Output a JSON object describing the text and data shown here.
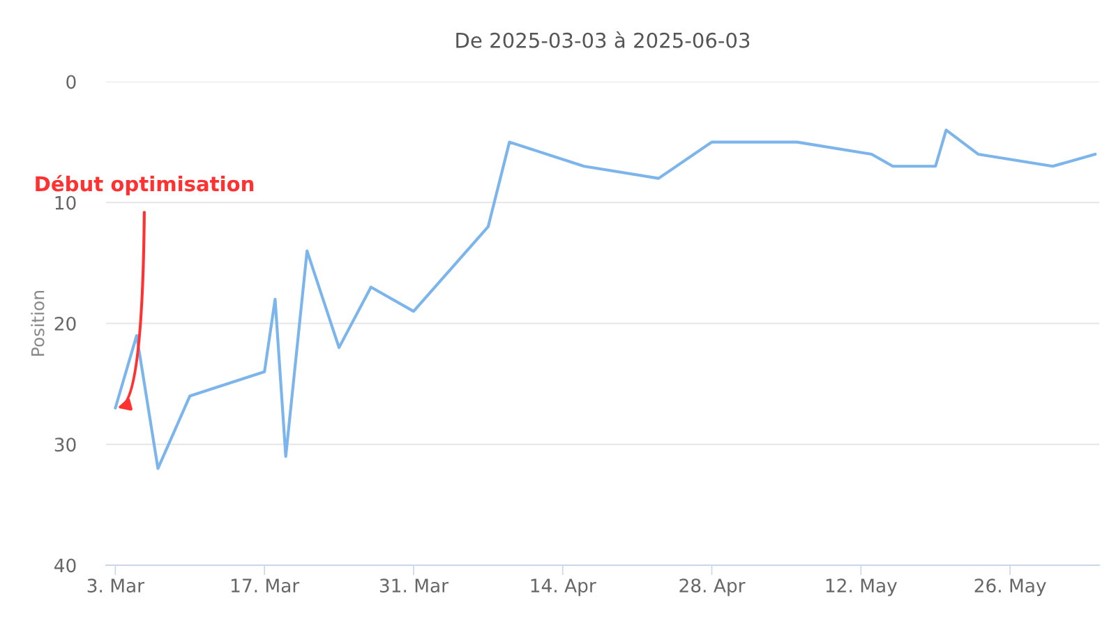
{
  "chart_data": {
    "type": "line",
    "title": "De 2025-03-03 à 2025-06-03",
    "ylabel": "Position",
    "x": [
      "2025-03-03",
      "2025-03-05",
      "2025-03-07",
      "2025-03-10",
      "2025-03-17",
      "2025-03-18",
      "2025-03-19",
      "2025-03-21",
      "2025-03-24",
      "2025-03-27",
      "2025-03-31",
      "2025-04-07",
      "2025-04-09",
      "2025-04-16",
      "2025-04-23",
      "2025-04-28",
      "2025-05-06",
      "2025-05-13",
      "2025-05-15",
      "2025-05-19",
      "2025-05-20",
      "2025-05-23",
      "2025-05-30",
      "2025-06-03"
    ],
    "series": [
      {
        "color": "#7cb5ec",
        "values": [
          27,
          21,
          32,
          26,
          24,
          18,
          31,
          14,
          22,
          17,
          19,
          12,
          5,
          7,
          8,
          5,
          5,
          6,
          7,
          7,
          4,
          6,
          7,
          6
        ]
      }
    ],
    "xlim": [
      "2025-03-02T03:00",
      "2025-06-03T09:00"
    ],
    "xticks": [
      {
        "value": "2025-03-03",
        "label": "3. Mar"
      },
      {
        "value": "2025-03-17",
        "label": "17. Mar"
      },
      {
        "value": "2025-03-31",
        "label": "31. Mar"
      },
      {
        "value": "2025-04-14",
        "label": "14. Apr"
      },
      {
        "value": "2025-04-28",
        "label": "28. Apr"
      },
      {
        "value": "2025-05-12",
        "label": "12. May"
      },
      {
        "value": "2025-05-26",
        "label": "26. May"
      }
    ],
    "ylim": [
      40,
      0
    ],
    "yticks": [
      0,
      10,
      20,
      30,
      40
    ],
    "grid": "y",
    "marker": "none",
    "line_style": "solid",
    "annotations": [
      {
        "text": "Début optimisation",
        "x": "2025-03-03",
        "y": 27
      }
    ]
  }
}
